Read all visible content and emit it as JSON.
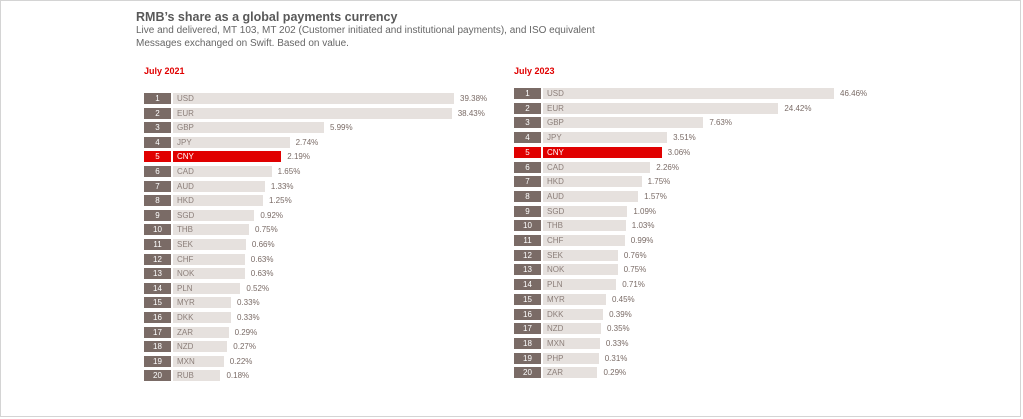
{
  "title": "RMB’s share as a global payments currency",
  "subtitle": "Live and delivered, MT 103, MT 202 (Customer initiated and institutional payments), and ISO equivalent Messages exchanged on Swift. Based on value.",
  "colors": {
    "highlight": "#e00000",
    "bar": "#e6e1de",
    "rank_box": "#7a6b66"
  },
  "chart_data": [
    {
      "type": "bar",
      "orientation": "horizontal",
      "title": "July 2021",
      "highlight": "CNY",
      "categories": [
        "USD",
        "EUR",
        "GBP",
        "JPY",
        "CNY",
        "CAD",
        "AUD",
        "HKD",
        "SGD",
        "THB",
        "SEK",
        "CHF",
        "NOK",
        "PLN",
        "MYR",
        "DKK",
        "ZAR",
        "NZD",
        "MXN",
        "RUB"
      ],
      "ranks": [
        "1",
        "2",
        "3",
        "4",
        "5",
        "6",
        "7",
        "8",
        "9",
        "10",
        "11",
        "12",
        "13",
        "14",
        "15",
        "16",
        "17",
        "18",
        "19",
        "20"
      ],
      "values": [
        39.38,
        38.43,
        5.99,
        2.74,
        2.19,
        1.65,
        1.33,
        1.25,
        0.92,
        0.75,
        0.66,
        0.63,
        0.63,
        0.52,
        0.33,
        0.33,
        0.29,
        0.27,
        0.22,
        0.18
      ],
      "value_labels": [
        "39.38%",
        "38.43%",
        "5.99%",
        "2.74%",
        "2.19%",
        "1.65%",
        "1.33%",
        "1.25%",
        "0.92%",
        "0.75%",
        "0.66%",
        "0.63%",
        "0.63%",
        "0.52%",
        "0.33%",
        "0.33%",
        "0.29%",
        "0.27%",
        "0.22%",
        "0.18%"
      ]
    },
    {
      "type": "bar",
      "orientation": "horizontal",
      "title": "July 2023",
      "highlight": "CNY",
      "categories": [
        "USD",
        "EUR",
        "GBP",
        "JPY",
        "CNY",
        "CAD",
        "HKD",
        "AUD",
        "SGD",
        "THB",
        "CHF",
        "SEK",
        "NOK",
        "PLN",
        "MYR",
        "DKK",
        "NZD",
        "MXN",
        "PHP",
        "ZAR"
      ],
      "ranks": [
        "1",
        "2",
        "3",
        "4",
        "5",
        "6",
        "7",
        "8",
        "9",
        "10",
        "11",
        "12",
        "13",
        "14",
        "15",
        "16",
        "17",
        "18",
        "19",
        "20"
      ],
      "values": [
        46.46,
        24.42,
        7.63,
        3.51,
        3.06,
        2.26,
        1.75,
        1.57,
        1.09,
        1.03,
        0.99,
        0.76,
        0.75,
        0.71,
        0.45,
        0.39,
        0.35,
        0.33,
        0.31,
        0.29
      ],
      "value_labels": [
        "46.46%",
        "24.42%",
        "7.63%",
        "3.51%",
        "3.06%",
        "2.26%",
        "1.75%",
        "1.57%",
        "1.09%",
        "1.03%",
        "0.99%",
        "0.76%",
        "0.75%",
        "0.71%",
        "0.45%",
        "0.39%",
        "0.35%",
        "0.33%",
        "0.31%",
        "0.29%"
      ]
    }
  ]
}
